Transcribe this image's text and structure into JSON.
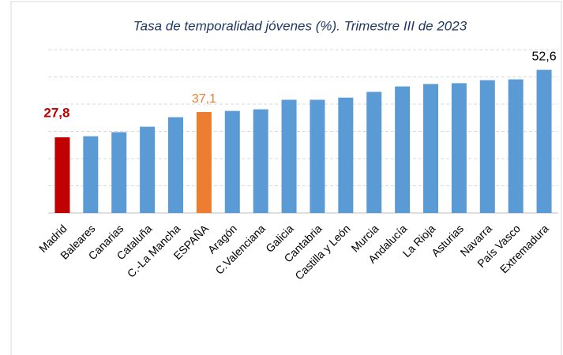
{
  "chart_data": {
    "type": "bar",
    "title": "Tasa de temporalidad jóvenes (%). Trimestre III de 2023",
    "categories": [
      "Madrid",
      "Baleares",
      "Canarias",
      "Cataluña",
      "C.-La Mancha",
      "ESPAÑA",
      "Aragón",
      "C.Valenciana",
      "Galicia",
      "Cantabria",
      "Castilla y León",
      "Murcia",
      "Andalucía",
      "La Rioja",
      "Asturias",
      "Navarra",
      "País Vasco",
      "Extremadura"
    ],
    "values": [
      27.8,
      28.2,
      29.7,
      31.7,
      35.2,
      37.1,
      37.5,
      38.1,
      41.6,
      41.6,
      42.4,
      44.5,
      46.5,
      47.4,
      47.7,
      48.8,
      49.1,
      52.6
    ],
    "value_labels": [
      "27,8",
      null,
      null,
      null,
      null,
      "37,1",
      null,
      null,
      null,
      null,
      null,
      null,
      null,
      null,
      null,
      null,
      null,
      "52,6"
    ],
    "colors": [
      "#c00000",
      "#5b9bd5",
      "#5b9bd5",
      "#5b9bd5",
      "#5b9bd5",
      "#ed7d31",
      "#5b9bd5",
      "#5b9bd5",
      "#5b9bd5",
      "#5b9bd5",
      "#5b9bd5",
      "#5b9bd5",
      "#5b9bd5",
      "#5b9bd5",
      "#5b9bd5",
      "#5b9bd5",
      "#5b9bd5",
      "#5b9bd5"
    ],
    "label_colors": [
      "#c00000",
      null,
      null,
      null,
      null,
      "#ed7d31",
      null,
      null,
      null,
      null,
      null,
      null,
      null,
      null,
      null,
      null,
      null,
      "#000000"
    ],
    "ylim": [
      0,
      60
    ],
    "yticks": [
      0,
      10,
      20,
      30,
      40,
      50,
      60
    ],
    "grid": true
  }
}
